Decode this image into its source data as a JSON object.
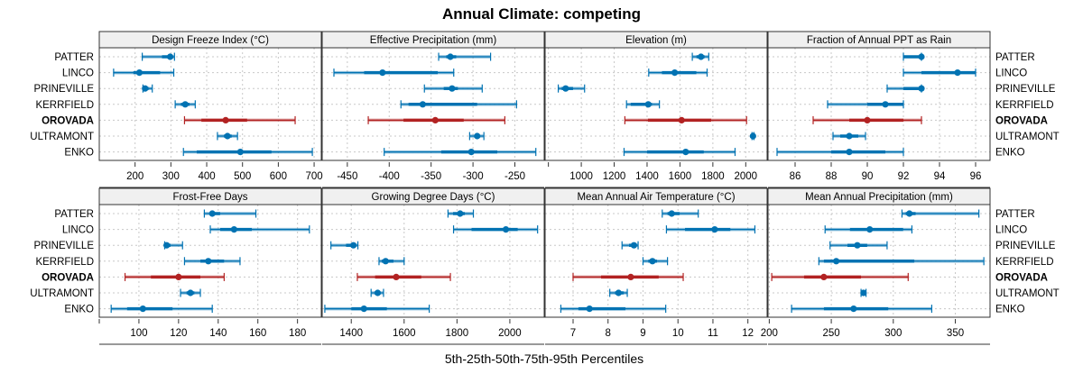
{
  "chart_data": {
    "type": "dot-interval",
    "title": "Annual Climate: competing",
    "xlabel": "5th-25th-50th-75th-95th Percentiles",
    "ylabel": "",
    "rows": [
      "PATTER",
      "LINCO",
      "PRINEVILLE",
      "KERRFIELD",
      "OROVADA",
      "ULTRAMONT",
      "ENKO"
    ],
    "highlight_row": "OROVADA",
    "colors": {
      "series": "#0072b2",
      "highlight": "#b22222",
      "strip_bg": "#f0f0f0",
      "grid": "#c8c8c8"
    },
    "grid": true,
    "layout": "2 rows x 4 columns",
    "panels": [
      {
        "title": "Design Freeze Index (°C)",
        "xlim": [
          100,
          720
        ],
        "ticks": [
          200,
          300,
          400,
          500,
          600,
          700
        ],
        "values": {
          "PATTER": [
            220,
            275,
            298,
            305,
            310
          ],
          "LINCO": [
            140,
            195,
            212,
            270,
            308
          ],
          "PRINEVILLE": [
            222,
            225,
            228,
            238,
            248
          ],
          "KERRFIELD": [
            312,
            328,
            340,
            352,
            368
          ],
          "OROVADA": [
            338,
            385,
            453,
            513,
            647
          ],
          "ULTRAMONT": [
            430,
            448,
            458,
            470,
            486
          ],
          "ENKO": [
            335,
            372,
            494,
            581,
            695
          ]
        }
      },
      {
        "title": "Effective Precipitation (mm)",
        "xlim": [
          -480,
          -215
        ],
        "ticks": [
          -450,
          -400,
          -350,
          -300,
          -250
        ],
        "values": {
          "PATTER": [
            -341,
            -332,
            -327,
            -320,
            -279
          ],
          "LINCO": [
            -466,
            -430,
            -408,
            -342,
            -323
          ],
          "PRINEVILLE": [
            -358,
            -335,
            -325,
            -318,
            -289
          ],
          "KERRFIELD": [
            -386,
            -377,
            -360,
            -295,
            -248
          ],
          "OROVADA": [
            -425,
            -383,
            -345,
            -311,
            -262
          ],
          "ULTRAMONT": [
            -304,
            -298,
            -295,
            -292,
            -287
          ],
          "ENKO": [
            -406,
            -338,
            -302,
            -271,
            -225
          ]
        }
      },
      {
        "title": "Elevation (m)",
        "xlim": [
          780,
          2130
        ],
        "ticks": [
          800,
          1000,
          1200,
          1400,
          1600,
          1800,
          2000
        ],
        "tick_labels": [
          "",
          "1000",
          "1200",
          "1400",
          "1600",
          "1800",
          "2000"
        ],
        "values": {
          "PATTER": [
            1675,
            1700,
            1728,
            1750,
            1775
          ],
          "LINCO": [
            1410,
            1490,
            1568,
            1700,
            1765
          ],
          "PRINEVILLE": [
            860,
            880,
            905,
            950,
            1020
          ],
          "KERRFIELD": [
            1275,
            1300,
            1407,
            1430,
            1475
          ],
          "OROVADA": [
            1265,
            1405,
            1610,
            1790,
            2005
          ],
          "ULTRAMONT": [
            2038,
            2040,
            2044,
            2048,
            2050
          ],
          "ENKO": [
            1260,
            1400,
            1635,
            1745,
            1935
          ]
        }
      },
      {
        "title": "Fraction of Annual PPT as Rain",
        "xlim": [
          84.5,
          96.8
        ],
        "ticks": [
          86,
          88,
          90,
          92,
          94,
          96
        ],
        "values": {
          "PATTER": [
            92,
            92,
            93,
            93,
            93
          ],
          "LINCO": [
            92,
            93,
            95,
            96,
            96
          ],
          "PRINEVILLE": [
            91.1,
            92,
            93,
            93,
            93
          ],
          "KERRFIELD": [
            87.8,
            90,
            91,
            92,
            92
          ],
          "OROVADA": [
            87,
            89,
            90,
            92,
            93
          ],
          "ULTRAMONT": [
            88.1,
            88.5,
            89,
            89.5,
            89.9
          ],
          "ENKO": [
            85,
            88,
            89,
            91,
            92
          ]
        }
      },
      {
        "title": "Frost-Free Days",
        "xlim": [
          80,
          192
        ],
        "ticks": [
          80,
          100,
          120,
          140,
          160,
          180
        ],
        "tick_labels": [
          "",
          "100",
          "120",
          "140",
          "160",
          "180"
        ],
        "values": {
          "PATTER": [
            133,
            136,
            137,
            141,
            159
          ],
          "LINCO": [
            136,
            141,
            148,
            157,
            186
          ],
          "PRINEVILLE": [
            113,
            113,
            114,
            116,
            122
          ],
          "KERRFIELD": [
            123,
            131,
            135,
            143,
            151
          ],
          "OROVADA": [
            93,
            106,
            120,
            131,
            143
          ],
          "ULTRAMONT": [
            121,
            124,
            126,
            128,
            131
          ],
          "ENKO": [
            86,
            94,
            102,
            117,
            137
          ]
        }
      },
      {
        "title": "Growing Degree Days (°C)",
        "xlim": [
          1290,
          2130
        ],
        "ticks": [
          1400,
          1600,
          1800,
          2000
        ],
        "values": {
          "PATTER": [
            1766,
            1785,
            1812,
            1830,
            1862
          ],
          "LINCO": [
            1787,
            1855,
            1985,
            2030,
            2105
          ],
          "PRINEVILLE": [
            1323,
            1380,
            1408,
            1415,
            1425
          ],
          "KERRFIELD": [
            1505,
            1515,
            1530,
            1560,
            1600
          ],
          "OROVADA": [
            1423,
            1490,
            1570,
            1665,
            1775
          ],
          "ULTRAMONT": [
            1475,
            1488,
            1500,
            1510,
            1522
          ],
          "ENKO": [
            1300,
            1400,
            1448,
            1535,
            1695
          ]
        }
      },
      {
        "title": "Mean Annual Air Temperature (°C)",
        "xlim": [
          6.2,
          12.55
        ],
        "ticks": [
          7,
          8,
          9,
          10,
          11,
          12
        ],
        "values": {
          "PATTER": [
            9.55,
            9.7,
            9.82,
            10.05,
            10.58
          ],
          "LINCO": [
            9.67,
            10.2,
            11.05,
            11.5,
            12.2
          ],
          "PRINEVILLE": [
            8.4,
            8.6,
            8.74,
            8.8,
            8.86
          ],
          "KERRFIELD": [
            9.0,
            9.15,
            9.27,
            9.4,
            9.7
          ],
          "OROVADA": [
            7.0,
            7.8,
            8.65,
            9.45,
            10.15
          ],
          "ULTRAMONT": [
            8.05,
            8.2,
            8.3,
            8.45,
            8.55
          ],
          "ENKO": [
            6.65,
            7.15,
            7.47,
            8.5,
            9.65
          ]
        }
      },
      {
        "title": "Mean Annual Precipitation (mm)",
        "xlim": [
          199,
          378
        ],
        "ticks": [
          200,
          250,
          300,
          350
        ],
        "values": {
          "PATTER": [
            307,
            310,
            313,
            318,
            369
          ],
          "LINCO": [
            245,
            265,
            281,
            308,
            315
          ],
          "PRINEVILLE": [
            249,
            263,
            271,
            279,
            295
          ],
          "KERRFIELD": [
            240,
            244,
            254,
            317,
            373
          ],
          "OROVADA": [
            202,
            228,
            244,
            274,
            312
          ],
          "ULTRAMONT": [
            274,
            275,
            276,
            277,
            278
          ],
          "ENKO": [
            218,
            244,
            268,
            296,
            331
          ]
        }
      }
    ]
  }
}
